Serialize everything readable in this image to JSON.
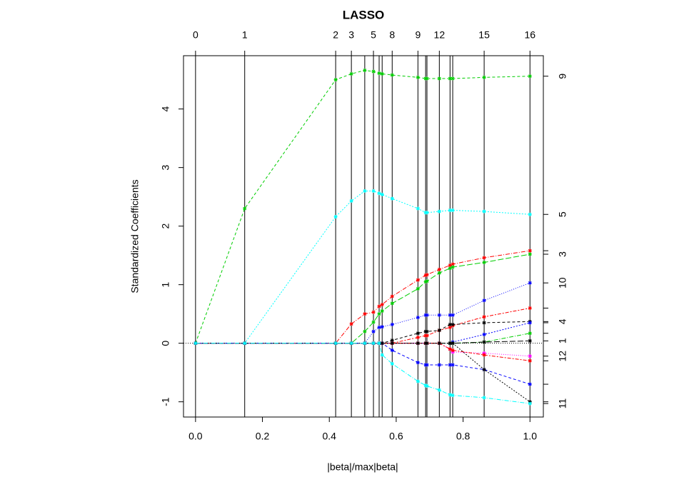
{
  "chart_data": {
    "type": "line",
    "title": "LASSO",
    "x_label": "|beta|/max|beta|",
    "y_label": "Standardized Coefficients",
    "x": [
      0,
      0.147,
      0.419,
      0.466,
      0.506,
      0.532,
      0.549,
      0.558,
      0.588,
      0.665,
      0.688,
      0.692,
      0.729,
      0.761,
      0.769,
      0.863,
      1.0
    ],
    "xlim": [
      -0.036,
      1.04
    ],
    "ylim": [
      -1.26,
      4.91
    ],
    "xticks": [
      {
        "value": 0,
        "label": "0.0"
      },
      {
        "value": 0.2,
        "label": "0.2"
      },
      {
        "value": 0.4,
        "label": "0.4"
      },
      {
        "value": 0.6,
        "label": "0.6"
      },
      {
        "value": 0.8,
        "label": "0.8"
      },
      {
        "value": 1,
        "label": "1.0"
      }
    ],
    "yticks": [
      -1,
      0,
      1,
      2,
      3,
      4
    ],
    "x2ticks": [
      {
        "value": 0,
        "label": "0"
      },
      {
        "value": 0.147,
        "label": "1"
      },
      {
        "value": 0.419,
        "label": "2"
      },
      {
        "value": 0.466,
        "label": "3"
      },
      {
        "value": 0.532,
        "label": "5"
      },
      {
        "value": 0.588,
        "label": "8"
      },
      {
        "value": 0.665,
        "label": "9"
      },
      {
        "value": 0.729,
        "label": "12"
      },
      {
        "value": 0.863,
        "label": "15"
      },
      {
        "value": 1,
        "label": "16"
      }
    ],
    "series": [
      {
        "color": "#00cd00",
        "end_label": "9",
        "values": [
          0,
          2.3,
          4.5,
          4.6,
          4.66,
          4.64,
          4.61,
          4.6,
          4.58,
          4.54,
          4.52,
          4.52,
          4.52,
          4.52,
          4.52,
          4.54,
          4.56
        ]
      },
      {
        "color": "#00ffff",
        "end_label": "5",
        "values": [
          0,
          0,
          2.16,
          2.43,
          2.6,
          2.6,
          2.56,
          2.54,
          2.47,
          2.3,
          2.23,
          2.23,
          2.25,
          2.27,
          2.27,
          2.25,
          2.2
        ]
      },
      {
        "color": "#ff0000",
        "values": [
          0,
          0,
          0,
          0.33,
          0.5,
          0.53,
          0.63,
          0.66,
          0.8,
          1.08,
          1.16,
          1.17,
          1.26,
          1.33,
          1.35,
          1.46,
          1.58
        ]
      },
      {
        "color": "#00cd00",
        "end_label": "3",
        "values": [
          0,
          0,
          0,
          0,
          0.2,
          0.36,
          0.5,
          0.55,
          0.68,
          0.93,
          1.05,
          1.06,
          1.2,
          1.28,
          1.3,
          1.38,
          1.52
        ]
      },
      {
        "color": "#0000ff",
        "end_label": "10",
        "values": [
          0,
          0,
          0,
          0,
          0,
          0.2,
          0.27,
          0.28,
          0.32,
          0.44,
          0.48,
          0.48,
          0.48,
          0.48,
          0.48,
          0.73,
          1.03
        ]
      },
      {
        "color": "#ff0000",
        "values": [
          0,
          0,
          0,
          0,
          0,
          0,
          0,
          0,
          0,
          0.1,
          0.13,
          0.13,
          0.22,
          0.27,
          0.3,
          0.45,
          0.6
        ]
      },
      {
        "color": "#000000",
        "end_label": "4",
        "values": [
          0,
          0,
          0,
          0,
          0,
          0,
          0,
          0,
          0.05,
          0.17,
          0.2,
          0.2,
          0.22,
          0.32,
          0.32,
          0.35,
          0.37
        ]
      },
      {
        "color": "#0000ff",
        "values": [
          0,
          0,
          0,
          0,
          0,
          0,
          0,
          0,
          0,
          0,
          0,
          0,
          0,
          0,
          0.02,
          0.15,
          0.35
        ]
      },
      {
        "color": "#00cd00",
        "values": [
          0,
          0,
          0,
          0,
          0,
          0,
          0,
          0,
          0,
          0,
          0,
          0,
          0,
          0,
          0,
          0.02,
          0.17
        ]
      },
      {
        "color": "#000000",
        "end_label": "1",
        "values": [
          0,
          0,
          0,
          0,
          0,
          0,
          0,
          0,
          0,
          0,
          0,
          0,
          0,
          0,
          0,
          0.02,
          0.04
        ]
      },
      {
        "color": "#ff00ff",
        "end_label": "12",
        "values": [
          0,
          0,
          0,
          0,
          0,
          0,
          0,
          0,
          0,
          0,
          0,
          0,
          0,
          -0.1,
          -0.15,
          -0.17,
          -0.22
        ]
      },
      {
        "color": "#ff0000",
        "values": [
          0,
          0,
          0,
          0,
          0,
          0,
          0,
          0,
          0,
          0,
          0,
          0,
          0,
          -0.1,
          -0.12,
          -0.2,
          -0.3
        ]
      },
      {
        "color": "#0000ff",
        "values": [
          0,
          0,
          0,
          0,
          0,
          0,
          0,
          0,
          -0.12,
          -0.33,
          -0.37,
          -0.37,
          -0.37,
          -0.37,
          -0.37,
          -0.45,
          -0.7
        ]
      },
      {
        "color": "#000000",
        "values": [
          0,
          0,
          0,
          0,
          0,
          0,
          0,
          0,
          0,
          0,
          0,
          0,
          0,
          0,
          0,
          -0.45,
          -1.0
        ]
      },
      {
        "color": "#00ffff",
        "end_label": "11",
        "values": [
          0,
          0,
          0,
          0,
          0,
          0,
          0,
          -0.2,
          -0.35,
          -0.65,
          -0.72,
          -0.73,
          -0.8,
          -0.88,
          -0.89,
          -0.93,
          -1.03
        ]
      }
    ]
  }
}
